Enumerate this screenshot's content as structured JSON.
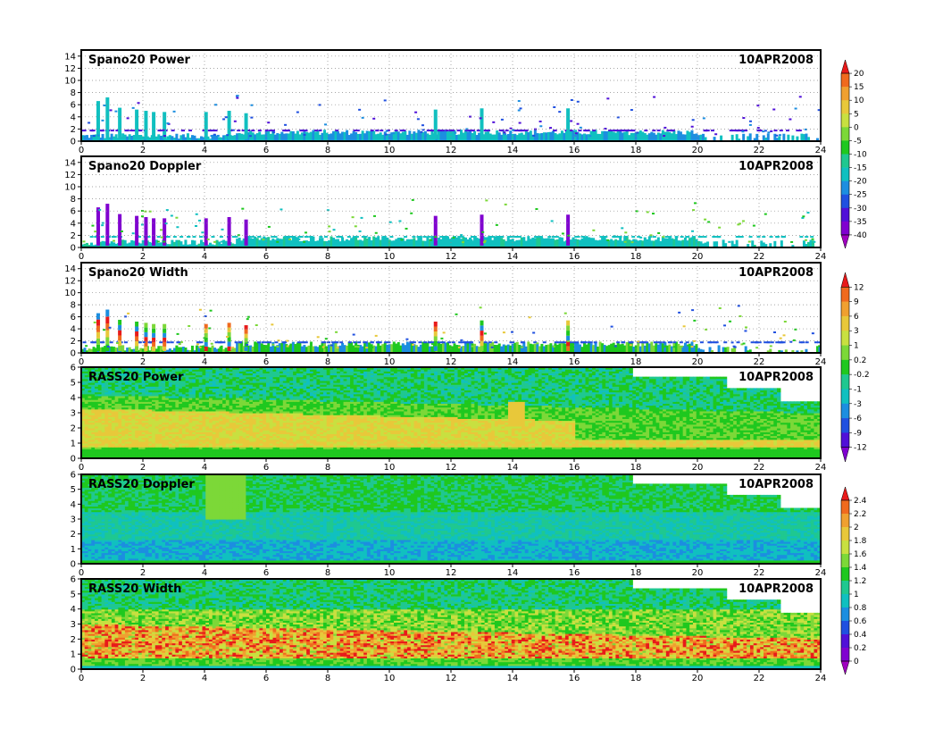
{
  "chart_data": [
    {
      "type": "heatmap",
      "title": "Spano20 Power",
      "date": "10APR2008",
      "xlim": [
        0,
        24
      ],
      "x_ticks": [
        0,
        2,
        4,
        6,
        8,
        10,
        12,
        14,
        16,
        18,
        20,
        22,
        24
      ],
      "ylim": [
        0,
        15
      ],
      "y_ticks": [
        0,
        2,
        4,
        6,
        8,
        10,
        12,
        14
      ],
      "grid": true,
      "field": "sparse",
      "colorbar": {
        "labels": [
          "20",
          "15",
          "10",
          "5",
          "0",
          "-5",
          "-10",
          "-15",
          "-20",
          "-25",
          "-30",
          "-35",
          "-40"
        ],
        "colors": [
          "#e81a1a",
          "#f06a1e",
          "#f0a030",
          "#e8c83a",
          "#c8e040",
          "#7cd838",
          "#1fc81f",
          "#1fc890",
          "#10c0c0",
          "#1c8ee0",
          "#2050e0",
          "#5010d8",
          "#8000d0",
          "#a000c0"
        ]
      }
    },
    {
      "type": "heatmap",
      "title": "Spano20 Doppler",
      "date": "10APR2008",
      "xlim": [
        0,
        24
      ],
      "x_ticks": [
        0,
        2,
        4,
        6,
        8,
        10,
        12,
        14,
        16,
        18,
        20,
        22,
        24
      ],
      "ylim": [
        0,
        15
      ],
      "y_ticks": [
        0,
        2,
        4,
        6,
        8,
        10,
        12,
        14
      ],
      "grid": true,
      "field": "sparse"
    },
    {
      "type": "heatmap",
      "title": "Spano20 Width",
      "date": "10APR2008",
      "xlim": [
        0,
        24
      ],
      "x_ticks": [
        0,
        2,
        4,
        6,
        8,
        10,
        12,
        14,
        16,
        18,
        20,
        22,
        24
      ],
      "ylim": [
        0,
        15
      ],
      "y_ticks": [
        0,
        2,
        4,
        6,
        8,
        10,
        12,
        14
      ],
      "grid": true,
      "field": "sparse",
      "colorbar": {
        "labels": [
          "12",
          "9",
          "6",
          "3",
          "1",
          "0.2",
          "-0.2",
          "-1",
          "-3",
          "-6",
          "-9",
          "-12"
        ],
        "colors": [
          "#e81a1a",
          "#f06a1e",
          "#f0a030",
          "#e8c83a",
          "#c8e040",
          "#7cd838",
          "#1fc81f",
          "#1fc890",
          "#10c0c0",
          "#1c8ee0",
          "#2050e0",
          "#5010d8",
          "#8000d0"
        ]
      }
    },
    {
      "type": "heatmap",
      "title": "RASS20 Power",
      "date": "10APR2008",
      "xlim": [
        0,
        24
      ],
      "x_ticks": [
        0,
        2,
        4,
        6,
        8,
        10,
        12,
        14,
        16,
        18,
        20,
        22,
        24
      ],
      "ylim": [
        0,
        6
      ],
      "y_ticks": [
        0,
        1,
        2,
        3,
        4,
        5,
        6
      ],
      "grid": false,
      "field": "rass_power"
    },
    {
      "type": "heatmap",
      "title": "RASS20 Doppler",
      "date": "10APR2008",
      "xlim": [
        0,
        24
      ],
      "x_ticks": [
        0,
        2,
        4,
        6,
        8,
        10,
        12,
        14,
        16,
        18,
        20,
        22,
        24
      ],
      "ylim": [
        0,
        6
      ],
      "y_ticks": [
        0,
        1,
        2,
        3,
        4,
        5,
        6
      ],
      "grid": false,
      "field": "rass_doppler",
      "colorbar": {
        "labels": [
          "2.4",
          "2.2",
          "2",
          "1.8",
          "1.6",
          "1.4",
          "1.2",
          "1",
          "0.8",
          "0.6",
          "0.4",
          "0.2",
          "0"
        ],
        "colors": [
          "#e81a1a",
          "#f06a1e",
          "#f0a030",
          "#e8c83a",
          "#c8e040",
          "#7cd838",
          "#1fc81f",
          "#1fc890",
          "#10c0c0",
          "#1c8ee0",
          "#2050e0",
          "#5010d8",
          "#8000d0",
          "#a000c0"
        ]
      }
    },
    {
      "type": "heatmap",
      "title": "RASS20 Width",
      "date": "10APR2008",
      "xlim": [
        0,
        24
      ],
      "x_ticks": [
        0,
        2,
        4,
        6,
        8,
        10,
        12,
        14,
        16,
        18,
        20,
        22,
        24
      ],
      "ylim": [
        0,
        6
      ],
      "y_ticks": [
        0,
        1,
        2,
        3,
        4,
        5,
        6
      ],
      "grid": false,
      "field": "rass_width"
    }
  ]
}
